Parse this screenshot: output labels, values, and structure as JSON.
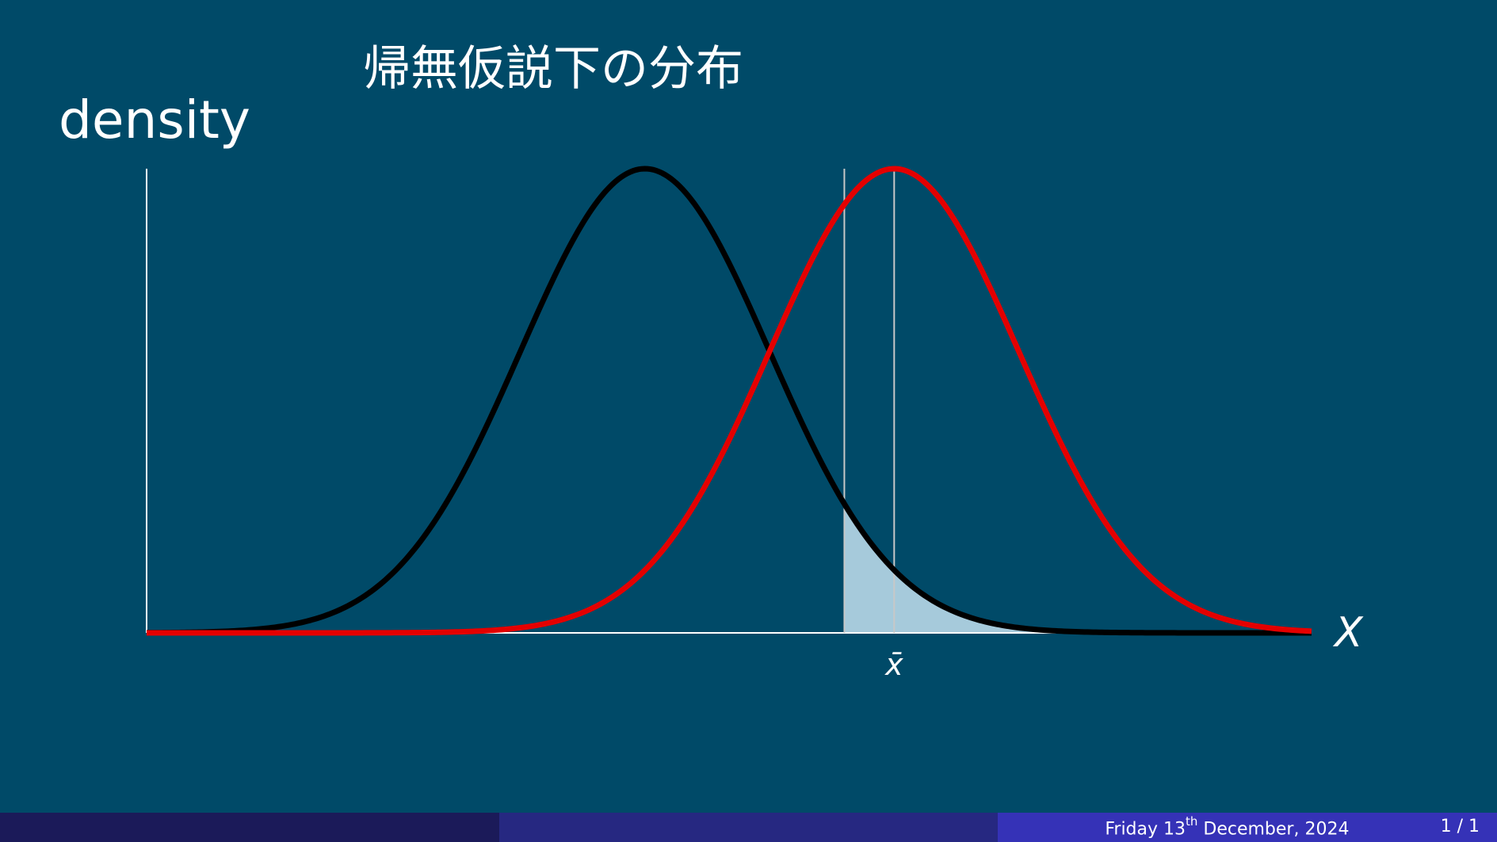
{
  "slide": {
    "title": "帰無仮説下の分布"
  },
  "chart_data": {
    "type": "line",
    "ylabel": "density",
    "xlabel": "X",
    "xbar_label": "x̄",
    "colors": {
      "background": "#004a68",
      "null_curve": "#000000",
      "alt_curve": "#e40000",
      "shaded_tail": "#a6cadb",
      "axes": "#ffffff",
      "marker_lines": "#c8c8c8"
    },
    "series": [
      {
        "mean": 0.0,
        "sd": 1.0
      },
      {
        "mean": 2.0,
        "sd": 1.0
      }
    ],
    "critical_value": 1.6,
    "xbar": 2.0,
    "xlim": [
      -4.0,
      5.35
    ],
    "shaded_region": "right tail of null distribution beyond critical value",
    "grid": false
  },
  "footer": {
    "day": "Friday 13",
    "ordinal": "th",
    "month_year": " December, 2024",
    "page": "1 / 1"
  }
}
